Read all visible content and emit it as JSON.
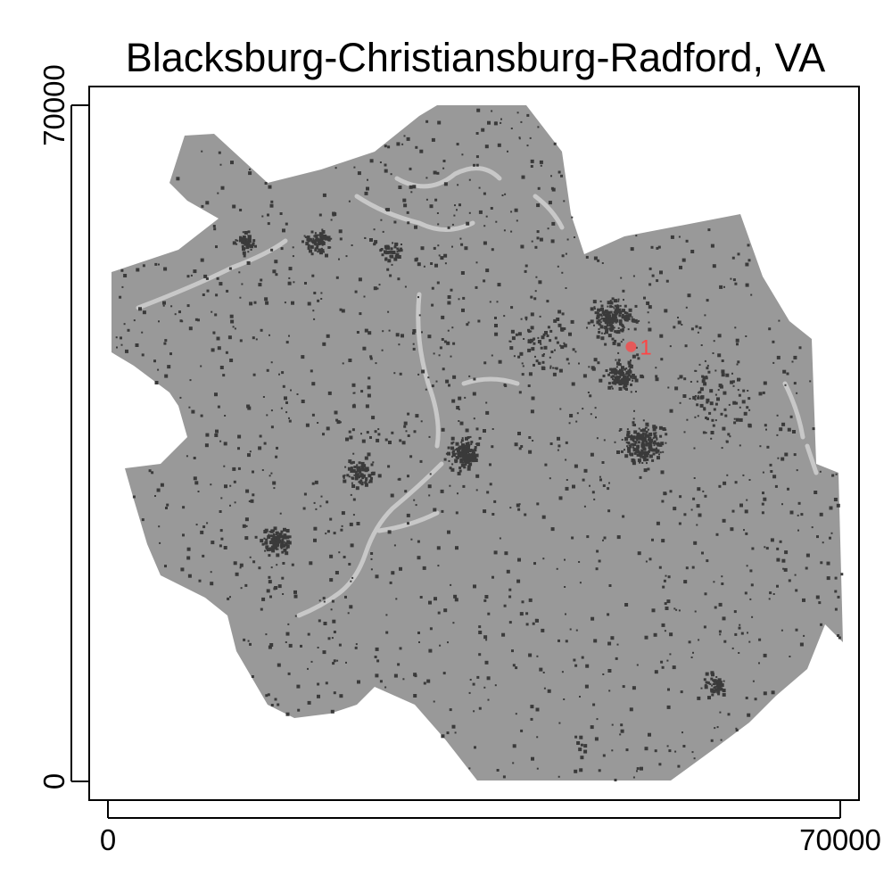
{
  "title": "Blacksburg-Christiansburg-Radford, VA",
  "x_axis": {
    "ticks": [
      "0",
      "70000"
    ],
    "range": [
      0,
      70000
    ]
  },
  "y_axis": {
    "ticks": [
      "0",
      "70000"
    ],
    "range": [
      0,
      70000
    ]
  },
  "colors": {
    "region_fill": "#999999",
    "development": "#3a3a3a",
    "water": "#c8c8c8",
    "marker": "#ff4444",
    "frame": "#000000"
  },
  "markers": [
    {
      "label": "1",
      "x": 50000,
      "y": 45000
    }
  ],
  "development_clusters": [
    {
      "x": 13000,
      "y": 56000,
      "spread": 1200,
      "count": 60
    },
    {
      "x": 20000,
      "y": 56000,
      "spread": 1500,
      "count": 80
    },
    {
      "x": 27000,
      "y": 55000,
      "spread": 1500,
      "count": 40
    },
    {
      "x": 48000,
      "y": 48000,
      "spread": 2500,
      "count": 160
    },
    {
      "x": 49000,
      "y": 42000,
      "spread": 2000,
      "count": 120
    },
    {
      "x": 51000,
      "y": 35000,
      "spread": 2500,
      "count": 200
    },
    {
      "x": 34000,
      "y": 34000,
      "spread": 2000,
      "count": 150
    },
    {
      "x": 24000,
      "y": 32000,
      "spread": 2000,
      "count": 90
    },
    {
      "x": 16000,
      "y": 25000,
      "spread": 1500,
      "count": 110
    },
    {
      "x": 58000,
      "y": 10000,
      "spread": 1200,
      "count": 60
    },
    {
      "x": 41000,
      "y": 45000,
      "spread": 5000,
      "count": 80
    },
    {
      "x": 58000,
      "y": 40000,
      "spread": 5000,
      "count": 80
    }
  ]
}
